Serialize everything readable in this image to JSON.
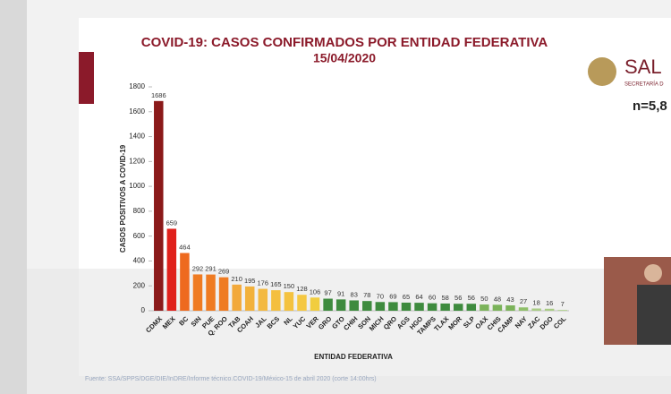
{
  "logo": {
    "name": "SAL",
    "subtitle": "SECRETARÍA D"
  },
  "note": "n=5,8",
  "source": "Fuente: SSA/SPPS/DGE/DIE/InDRE/Informe técnico.COVID-19/México-15 de abril 2020 (corte 14:00hrs)",
  "chart_data": {
    "type": "bar",
    "title": "COVID-19: CASOS CONFIRMADOS POR ENTIDAD FEDERATIVA",
    "subtitle": "15/04/2020",
    "y_label": "CASOS POSITIVOS A COVID-19",
    "x_label": "ENTIDAD FEDERATIVA",
    "categories": [
      "CDMX",
      "MEX",
      "BC",
      "SIN",
      "PUE",
      "Q. ROO",
      "TAB",
      "COAH",
      "JAL",
      "BCS",
      "NL",
      "YUC",
      "VER",
      "GRO",
      "GTO",
      "CHIH",
      "SON",
      "MICH",
      "QRO",
      "AGS",
      "HGO",
      "TAMPS",
      "TLAX",
      "MOR",
      "SLP",
      "OAX",
      "CHIS",
      "CAMP",
      "NAY",
      "ZAC",
      "DGO",
      "COL"
    ],
    "values": [
      1686,
      659,
      464,
      292,
      291,
      269,
      210,
      195,
      176,
      165,
      150,
      128,
      106,
      97,
      91,
      83,
      78,
      70,
      69,
      65,
      64,
      60,
      58,
      56,
      56,
      50,
      48,
      43,
      27,
      18,
      16,
      7
    ],
    "colors": [
      "#8b1a1a",
      "#e0201b",
      "#ee6a1f",
      "#ef7b22",
      "#ef7b22",
      "#ef7b22",
      "#f2a93b",
      "#f2b13b",
      "#f3b941",
      "#f4bf3f",
      "#f4c23f",
      "#f5c842",
      "#f1cd3f",
      "#3e8b3e",
      "#3e8b3e",
      "#3e8b3e",
      "#3e8b3e",
      "#3e8b3e",
      "#3e8b3e",
      "#3e8b3e",
      "#3e8b3e",
      "#3e8b3e",
      "#3e8b3e",
      "#3e8b3e",
      "#3e8b3e",
      "#7bb35a",
      "#7bb35a",
      "#7bb35a",
      "#8fbf6a",
      "#a9cc85",
      "#a9cc85",
      "#b5d394"
    ],
    "ylim": [
      0,
      1800
    ],
    "yticks": [
      0,
      200,
      400,
      600,
      800,
      1000,
      1200,
      1400,
      1600,
      1800
    ]
  }
}
